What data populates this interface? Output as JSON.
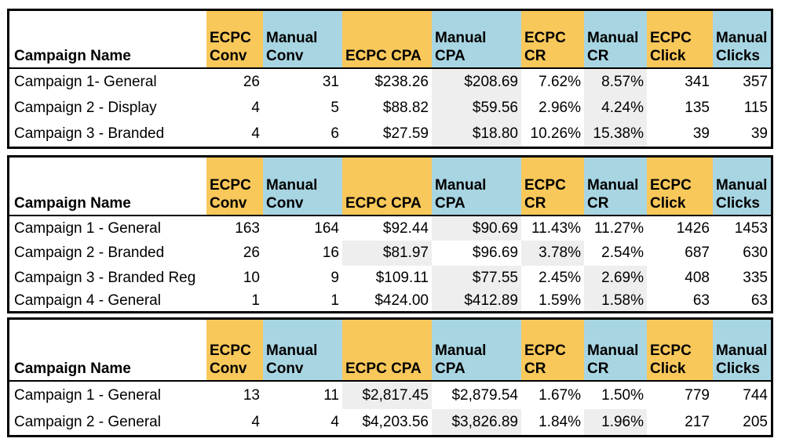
{
  "colors": {
    "ecpc_header": "#f9c85a",
    "manual_header": "#a8d5e2",
    "shade": "#eeeeee"
  },
  "headers": {
    "campaign_name": "Campaign Name",
    "ecpc_conv_1": "ECPC",
    "ecpc_conv_2": "Conv",
    "manual_conv_1": "Manual",
    "manual_conv_2": "Conv",
    "ecpc_cpa_1": "",
    "ecpc_cpa_2": "ECPC CPA",
    "manual_cpa_1": "Manual",
    "manual_cpa_2": "CPA",
    "ecpc_cr_1": "ECPC",
    "ecpc_cr_2": "CR",
    "manual_cr_1": "Manual",
    "manual_cr_2": "CR",
    "ecpc_click_1": "ECPC",
    "ecpc_click_2": "Click",
    "manual_clicks_1": "Manual",
    "manual_clicks_2": "Clicks"
  },
  "tables": [
    {
      "rows": [
        {
          "name": "Campaign 1- General",
          "ecpc_conv": "26",
          "manual_conv": "31",
          "ecpc_cpa": "$238.26",
          "manual_cpa": "$208.69",
          "ecpc_cr": "7.62%",
          "manual_cr": "8.57%",
          "ecpc_click": "341",
          "manual_clicks": "357"
        },
        {
          "name": "Campaign 2 - Display",
          "ecpc_conv": "4",
          "manual_conv": "5",
          "ecpc_cpa": "$88.82",
          "manual_cpa": "$59.56",
          "ecpc_cr": "2.96%",
          "manual_cr": "4.24%",
          "ecpc_click": "135",
          "manual_clicks": "115"
        },
        {
          "name": "Campaign 3 - Branded",
          "ecpc_conv": "4",
          "manual_conv": "6",
          "ecpc_cpa": "$27.59",
          "manual_cpa": "$18.80",
          "ecpc_cr": "10.26%",
          "manual_cr": "15.38%",
          "ecpc_click": "39",
          "manual_clicks": "39"
        }
      ]
    },
    {
      "rows": [
        {
          "name": "Campaign 1 - General",
          "ecpc_conv": "163",
          "manual_conv": "164",
          "ecpc_cpa": "$92.44",
          "manual_cpa": "$90.69",
          "ecpc_cr": "11.43%",
          "manual_cr": "11.27%",
          "ecpc_click": "1426",
          "manual_clicks": "1453"
        },
        {
          "name": "Campaign 2 - Branded",
          "ecpc_conv": "26",
          "manual_conv": "16",
          "ecpc_cpa": "$81.97",
          "manual_cpa": "$96.69",
          "ecpc_cr": "3.78%",
          "manual_cr": "2.54%",
          "ecpc_click": "687",
          "manual_clicks": "630"
        },
        {
          "name": "Campaign 3 - Branded Reg",
          "ecpc_conv": "10",
          "manual_conv": "9",
          "ecpc_cpa": "$109.11",
          "manual_cpa": "$77.55",
          "ecpc_cr": "2.45%",
          "manual_cr": "2.69%",
          "ecpc_click": "408",
          "manual_clicks": "335"
        },
        {
          "name": "Campaign 4 - General",
          "ecpc_conv": "1",
          "manual_conv": "1",
          "ecpc_cpa": "$424.00",
          "manual_cpa": "$412.89",
          "ecpc_cr": "1.59%",
          "manual_cr": "1.58%",
          "ecpc_click": "63",
          "manual_clicks": "63"
        }
      ]
    },
    {
      "rows": [
        {
          "name": "Campaign 1 - General",
          "ecpc_conv": "13",
          "manual_conv": "11",
          "ecpc_cpa": "$2,817.45",
          "manual_cpa": "$2,879.54",
          "ecpc_cr": "1.67%",
          "manual_cr": "1.50%",
          "ecpc_click": "779",
          "manual_clicks": "744"
        },
        {
          "name": "Campaign 2 - General",
          "ecpc_conv": "4",
          "manual_conv": "4",
          "ecpc_cpa": "$4,203.56",
          "manual_cpa": "$3,826.89",
          "ecpc_cr": "1.84%",
          "manual_cr": "1.96%",
          "ecpc_click": "217",
          "manual_clicks": "205"
        }
      ]
    }
  ]
}
